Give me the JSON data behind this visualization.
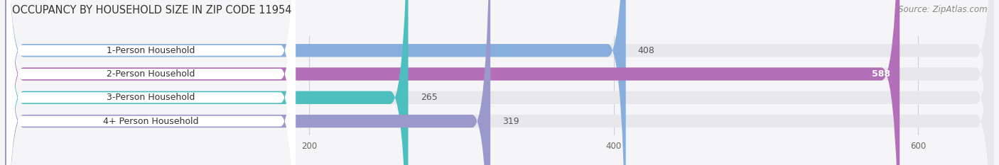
{
  "title": "OCCUPANCY BY HOUSEHOLD SIZE IN ZIP CODE 11954",
  "source": "Source: ZipAtlas.com",
  "categories": [
    "1-Person Household",
    "2-Person Household",
    "3-Person Household",
    "4+ Person Household"
  ],
  "values": [
    408,
    588,
    265,
    319
  ],
  "bar_colors": [
    "#88aedd",
    "#b370b8",
    "#4dbfbf",
    "#9999cc"
  ],
  "bar_bg_color": "#e8e8ec",
  "xlim": [
    0,
    650
  ],
  "xticks": [
    200,
    400,
    600
  ],
  "title_fontsize": 10.5,
  "source_fontsize": 8.5,
  "label_fontsize": 9,
  "value_fontsize": 9,
  "tick_fontsize": 8.5,
  "background_color": "#f5f5f7",
  "bar_height": 0.55,
  "grid_color": "#d0d0d8"
}
